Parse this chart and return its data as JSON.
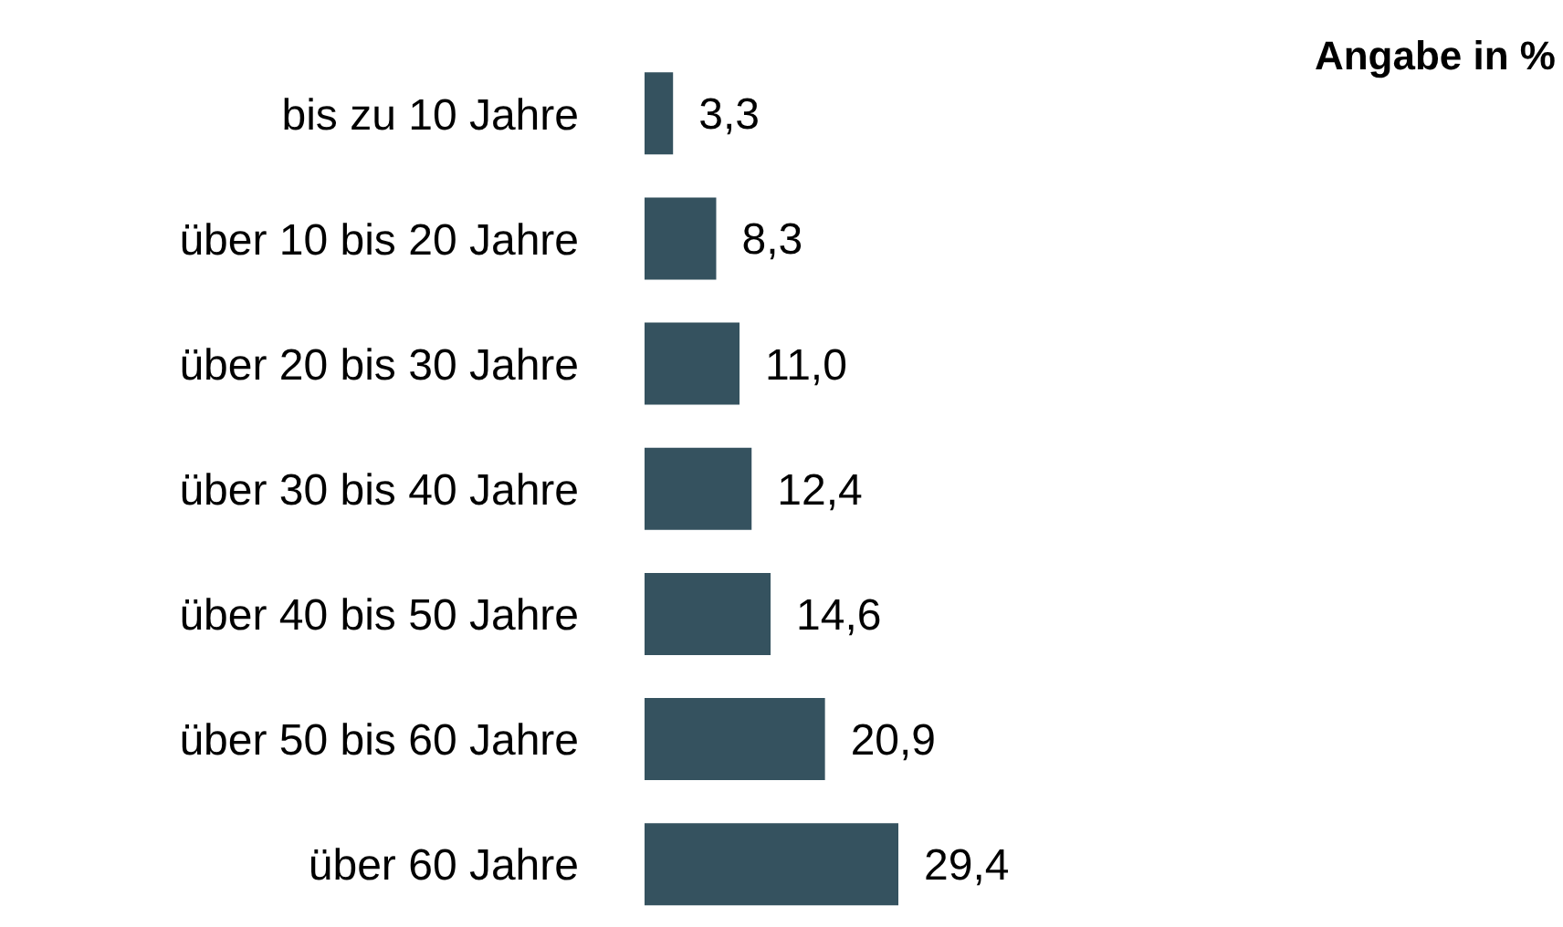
{
  "chart_data": {
    "type": "bar",
    "orientation": "horizontal",
    "title": "Angabe in %",
    "categories": [
      "bis zu 10 Jahre",
      "über 10 bis 20 Jahre",
      "über 20 bis 30 Jahre",
      "über 30 bis 40 Jahre",
      "über 40 bis 50 Jahre",
      "über 50 bis 60 Jahre",
      "über 60 Jahre"
    ],
    "values": [
      3.3,
      8.3,
      11.0,
      12.4,
      14.6,
      20.9,
      29.4
    ],
    "value_labels": [
      "3,3",
      "8,3",
      "11,0",
      "12,4",
      "14,6",
      "20,9",
      "29,4"
    ],
    "color": "#35525f",
    "grid": false,
    "legend": false
  }
}
